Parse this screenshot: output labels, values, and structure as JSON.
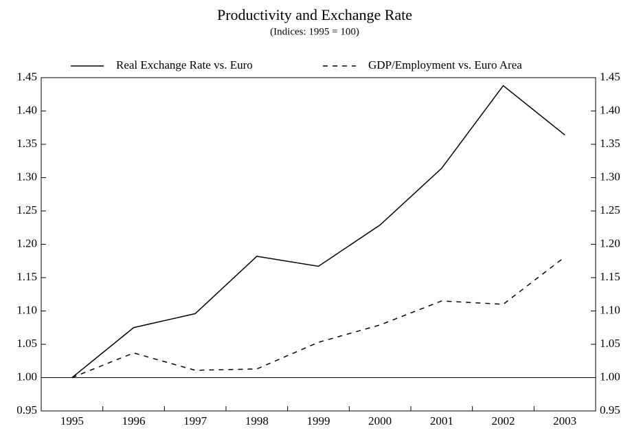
{
  "chart_data": {
    "type": "line",
    "title": "Productivity and Exchange Rate",
    "subtitle": "(Indices: 1995 = 100)",
    "categories": [
      "1995",
      "1996",
      "1997",
      "1998",
      "1999",
      "2000",
      "2001",
      "2002",
      "2003"
    ],
    "series": [
      {
        "name": "Real Exchange Rate vs. Euro",
        "color": "#000000",
        "linestyle": "solid",
        "values": [
          1.0,
          1.075,
          1.096,
          1.182,
          1.167,
          1.229,
          1.314,
          1.438,
          1.364
        ]
      },
      {
        "name": "GDP/Employment vs. Euro Area",
        "color": "#000000",
        "linestyle": "dashed",
        "values": [
          1.0,
          1.037,
          1.011,
          1.013,
          1.053,
          1.079,
          1.115,
          1.11,
          1.181
        ]
      }
    ],
    "ylim": [
      0.95,
      1.45
    ],
    "yticks": [
      0.95,
      {
        "value": 1,
        "label": "1.00"
      },
      1.05,
      {
        "value": 1.1,
        "label": "1.10"
      },
      1.15,
      {
        "value": 1.2,
        "label": "1.20"
      },
      1.25,
      {
        "value": 1.3,
        "label": "1.30"
      },
      1.35,
      {
        "value": 1.4,
        "label": "1.40"
      },
      1.45
    ],
    "y_axis_both_sides": true,
    "reference_line": 1,
    "legend": "top",
    "grid": false
  }
}
